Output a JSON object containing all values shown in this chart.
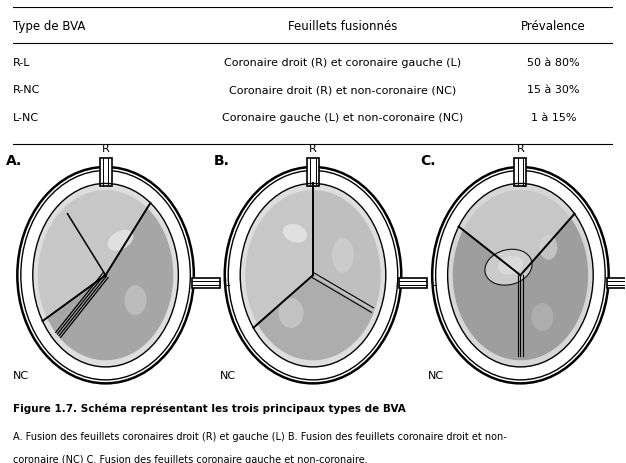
{
  "table_headers": [
    "Type de BVA",
    "Feuillets fusionnés",
    "Prévalence"
  ],
  "table_rows": [
    [
      "R-L",
      "Coronaire droit (R) et coronaire gauche (L)",
      "50 à 80%"
    ],
    [
      "R-NC",
      "Coronaire droit (R) et non-coronaire (NC)",
      "15 à 30%"
    ],
    [
      "L-NC",
      "Coronaire gauche (L) et non-coronaire (NC)",
      "1 à 15%"
    ]
  ],
  "panel_labels": [
    "A.",
    "B.",
    "C."
  ],
  "figure_title": "Figure 1.7. Schéma représentant les trois principaux types de BVA",
  "figure_caption_line1": "A. Fusion des feuillets coronaires droit (R) et gauche (L) B. Fusion des feuillets coronaire droit et non-",
  "figure_caption_line2": "coronaire (NC) C. Fusion des feuillets coronaire gauche et non-coronaire.",
  "bg_color": "#ffffff"
}
